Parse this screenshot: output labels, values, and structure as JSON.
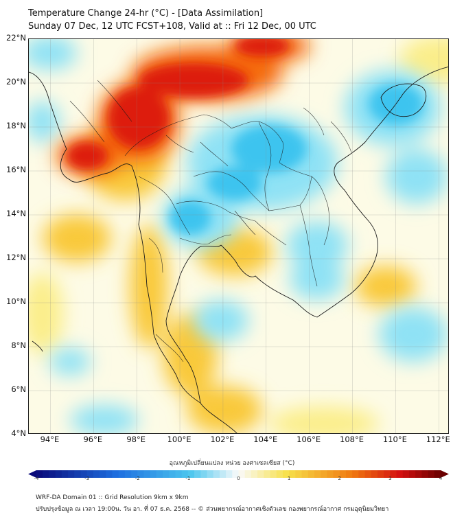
{
  "title": {
    "line1": "Temperature Change 24-hr (°C) - [Data Assimilation]",
    "line2": "Sunday 07 Dec, 12 UTC FCST+108, Valid at :: Fri 12 Dec, 00 UTC"
  },
  "axes": {
    "lat_labels": [
      "22°N",
      "20°N",
      "18°N",
      "16°N",
      "14°N",
      "12°N",
      "10°N",
      "8°N",
      "6°N",
      "4°N"
    ],
    "lon_labels": [
      "94°E",
      "96°E",
      "98°E",
      "100°E",
      "102°E",
      "104°E",
      "106°E",
      "108°E",
      "110°E",
      "112°E"
    ]
  },
  "colorbar": {
    "title": "อุณหภูมิเปลี่ยนแปลง หน่วย องศาเซลเซียส (°C)",
    "ticks": [
      "-4",
      "-3",
      "-2",
      "-1",
      "0",
      "1",
      "2",
      "3",
      "4"
    ],
    "range": [
      -4,
      4
    ],
    "colors": {
      "strong_cold": "#0a0a7a",
      "cold": "#1e6fe0",
      "cool": "#4cc6ee",
      "neutral": "#fafafa",
      "warm": "#f7e04a",
      "hot": "#f07a10",
      "very_hot": "#d41010",
      "extreme": "#6a0000"
    }
  },
  "map": {
    "field": {
      "background": "#fdfbe6",
      "hot_core": "#dd1a0a",
      "hot": "#f56a0c",
      "warm": "#f9c93a",
      "mild_warm": "#fbee8a",
      "cool": "#8fe2f5",
      "cold": "#3cc4ef"
    }
  },
  "footer": {
    "line1": "WRF-DA Domain 01 :: Grid Resolution 9km x 9km",
    "line2": "ปรับปรุงข้อมูล ณ เวลา 19:00น. วัน อา. ที่ 07 ธ.ค. 2568 -- © ส่วนพยากรณ์อากาศเชิงตัวเลข กองพยากรณ์อากาศ กรมอุตุนิยมวิทยา"
  }
}
